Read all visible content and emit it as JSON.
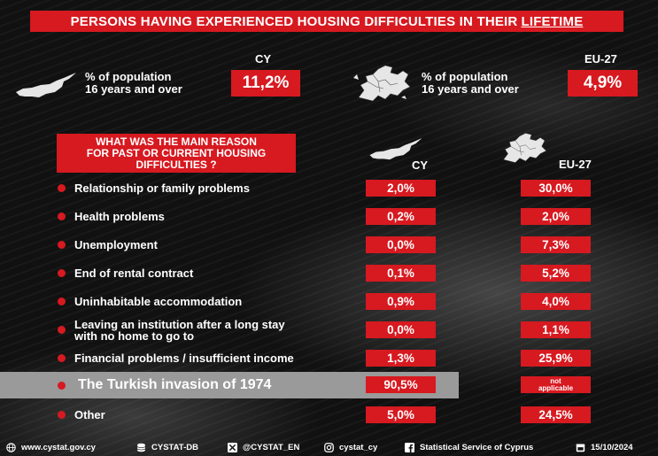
{
  "header": {
    "title": "PERSONS HAVING EXPERIENCED HOUSING DIFFICULTIES IN THEIR",
    "title_underlined": "LIFETIME"
  },
  "summary": {
    "cy": {
      "label": "CY",
      "desc_line1": "% of population",
      "desc_line2": "16 years and over",
      "value": "11,2%"
    },
    "eu": {
      "label": "EU-27",
      "desc_line1": "% of population",
      "desc_line2": "16 years and over",
      "value": "4,9%"
    }
  },
  "question": {
    "line1": "WHAT WAS THE MAIN REASON",
    "line2": "FOR PAST OR CURRENT HOUSING",
    "line3": "DIFFICULTIES ?"
  },
  "columns": {
    "cy": "CY",
    "eu": "EU-27"
  },
  "reasons": [
    {
      "label": "Relationship or family problems",
      "cy": "2,0%",
      "eu": "30,0%"
    },
    {
      "label": "Health problems",
      "cy": "0,2%",
      "eu": "2,0%"
    },
    {
      "label": "Unemployment",
      "cy": "0,0%",
      "eu": "7,3%"
    },
    {
      "label": "End of rental contract",
      "cy": "0,1%",
      "eu": "5,2%"
    },
    {
      "label": "Uninhabitable accommodation",
      "cy": "0,9%",
      "eu": "4,0%"
    },
    {
      "label_line1": "Leaving an institution after a long stay",
      "label_line2": "with no home to go to",
      "cy": "0,0%",
      "eu": "1,1%"
    },
    {
      "label": "Financial problems / insufficient income",
      "cy": "1,3%",
      "eu": "25,9%"
    },
    {
      "label": "The Turkish invasion of 1974",
      "cy": "90,5%",
      "eu_line1": "not",
      "eu_line2": "applicable"
    },
    {
      "label": "Other",
      "cy": "5,0%",
      "eu": "24,5%"
    }
  ],
  "footer": {
    "website": "www.cystat.gov.cy",
    "db": "CYSTAT-DB",
    "x": "@CYSTAT_EN",
    "instagram": "cystat_cy",
    "facebook": "Statistical Service of Cyprus",
    "date": "15/10/2024"
  },
  "colors": {
    "accent": "#d71920",
    "background": "#111111",
    "highlight": "#9a9a9a"
  }
}
